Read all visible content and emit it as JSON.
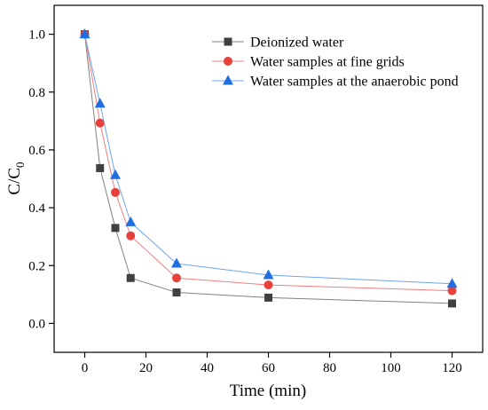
{
  "chart_data": {
    "type": "line",
    "xlabel": "Time (min)",
    "ylabel_main": "C/C",
    "ylabel_sub": "0",
    "xlim": [
      -10,
      130
    ],
    "ylim": [
      -0.1,
      1.1
    ],
    "xticks": [
      0,
      20,
      40,
      60,
      80,
      100,
      120
    ],
    "yticks": [
      0.0,
      0.2,
      0.4,
      0.6,
      0.8,
      1.0
    ],
    "xtick_labels": [
      "0",
      "20",
      "40",
      "60",
      "80",
      "100",
      "120"
    ],
    "ytick_labels": [
      "0.0",
      "0.2",
      "0.4",
      "0.6",
      "0.8",
      "1.0"
    ],
    "grid": false,
    "legend_position": "top-right",
    "x": [
      0,
      5,
      10,
      15,
      30,
      60,
      120
    ],
    "series": [
      {
        "name": "Deionized water",
        "marker": "square",
        "color": "#404040",
        "line_color": "#808080",
        "values": [
          1.0,
          0.537,
          0.33,
          0.157,
          0.107,
          0.089,
          0.069
        ]
      },
      {
        "name": "Water samples at fine grids",
        "marker": "circle",
        "color": "#e8413c",
        "line_color": "#f08080",
        "values": [
          1.0,
          0.693,
          0.453,
          0.303,
          0.157,
          0.133,
          0.113
        ]
      },
      {
        "name": "Water samples at the anaerobic pond",
        "marker": "triangle",
        "color": "#1f6fe0",
        "line_color": "#6fa5ef",
        "values": [
          1.0,
          0.76,
          0.513,
          0.35,
          0.207,
          0.167,
          0.137
        ]
      }
    ]
  }
}
